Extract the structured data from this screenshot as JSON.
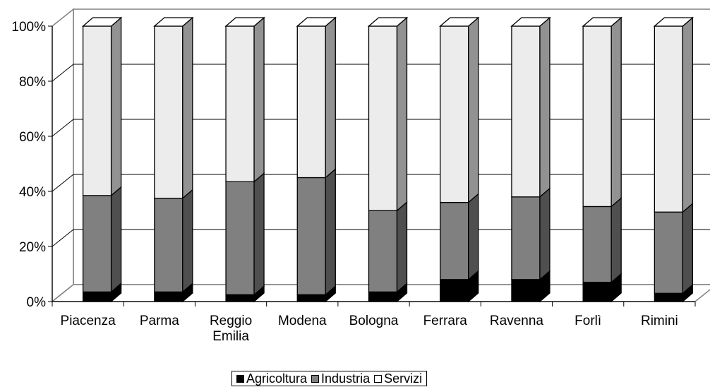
{
  "chart_data": {
    "type": "bar",
    "stacked": true,
    "percent": true,
    "three_d": true,
    "categories": [
      "Piacenza",
      "Parma",
      "Reggio Emilia",
      "Modena",
      "Bologna",
      "Ferrara",
      "Ravenna",
      "Forlì",
      "Rimini"
    ],
    "series": [
      {
        "name": "Agricoltura",
        "color": "#000000",
        "values": [
          3.5,
          3.5,
          2.5,
          2.5,
          3.5,
          8,
          8,
          7,
          3
        ]
      },
      {
        "name": "Industria",
        "color": "#808080",
        "values": [
          35,
          34,
          41,
          42.5,
          29.5,
          28,
          30,
          27.5,
          29.5
        ]
      },
      {
        "name": "Servizi",
        "color": "#ececec",
        "values": [
          61.5,
          62.5,
          56.5,
          55,
          67,
          64,
          62,
          65.5,
          67.5
        ]
      }
    ],
    "y_ticks": [
      "0%",
      "20%",
      "40%",
      "60%",
      "80%",
      "100%"
    ],
    "ylim": [
      0,
      100
    ],
    "grid": true,
    "legend_position": "bottom"
  }
}
